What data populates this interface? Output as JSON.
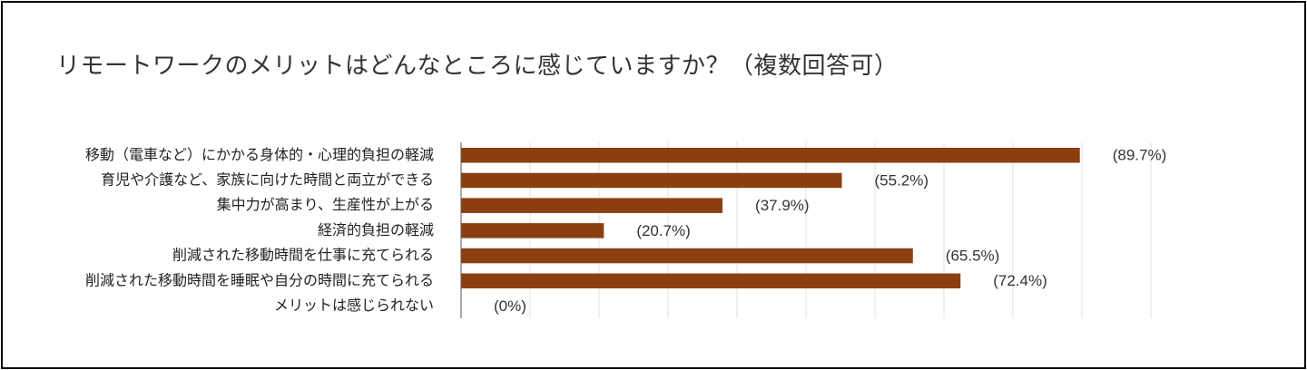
{
  "chart_data": {
    "type": "bar",
    "orientation": "horizontal",
    "title": "リモートワークのメリットはどんなところに感じていますか？（複数回答可）",
    "categories": [
      "移動（電車など）にかかる身体的・心理的負担の軽減",
      "育児や介護など、家族に向けた時間と両立ができる",
      "集中力が高まり、生産性が上がる",
      "経済的負担の軽減",
      "削減された移動時間を仕事に充てられる",
      "削減された移動時間を睡眠や自分の時間に充てられる",
      "メリットは感じられない"
    ],
    "values": [
      89.7,
      55.2,
      37.9,
      20.7,
      65.5,
      72.4,
      0
    ],
    "value_labels": [
      "(89.7%)",
      "(55.2%)",
      "(37.9%)",
      "(20.7%)",
      "(65.5%)",
      "(72.4%)",
      "(0%)"
    ],
    "xlim": [
      0,
      100
    ],
    "grid": true,
    "legend": "none",
    "bar_color": "#8B3F10"
  }
}
